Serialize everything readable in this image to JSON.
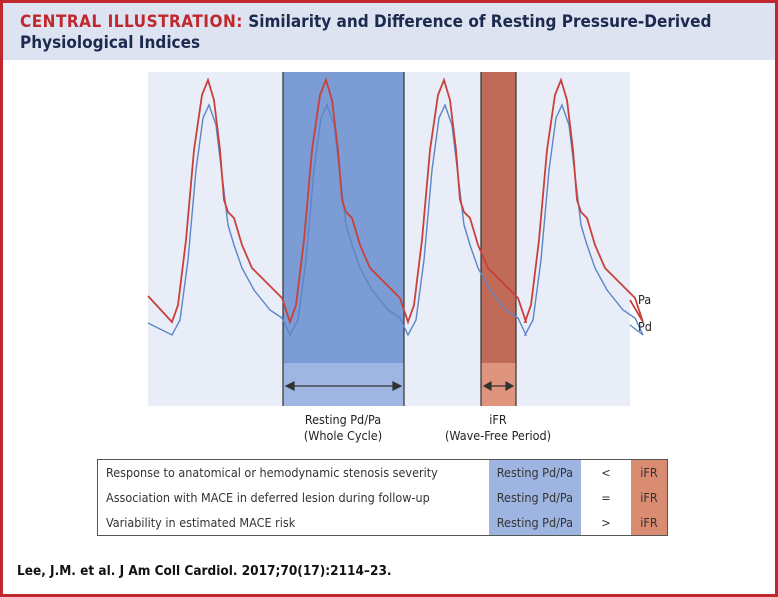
{
  "title": {
    "lead": "CENTRAL ILLUSTRATION:",
    "text": "Similarity and Difference of Resting Pressure-Derived Physiological Indices"
  },
  "traces": [
    {
      "label": "Pa",
      "color": "#c8413a"
    },
    {
      "label": "Pd",
      "color": "#5b86c8"
    }
  ],
  "bands": {
    "resting": {
      "line1": "Resting Pd/Pa",
      "line2": "(Whole Cycle)",
      "color": "#7b9cd4"
    },
    "ifr": {
      "line1": "iFR",
      "line2": "(Wave-Free Period)",
      "color": "#c06a58"
    }
  },
  "table": {
    "rows": [
      {
        "label": "Response to anatomical or hemodynamic stenosis severity",
        "left": "Resting Pd/Pa",
        "symbol": "<",
        "right": "iFR"
      },
      {
        "label": "Association with MACE in deferred lesion during follow-up",
        "left": "Resting Pd/Pa",
        "symbol": "=",
        "right": "iFR"
      },
      {
        "label": "Variability in estimated MACE risk",
        "left": "Resting Pd/Pa",
        "symbol": ">",
        "right": "iFR"
      }
    ]
  },
  "citation": "Lee, J.M. et al. J Am Coll Cardiol. 2017;70(17):2114–23."
}
